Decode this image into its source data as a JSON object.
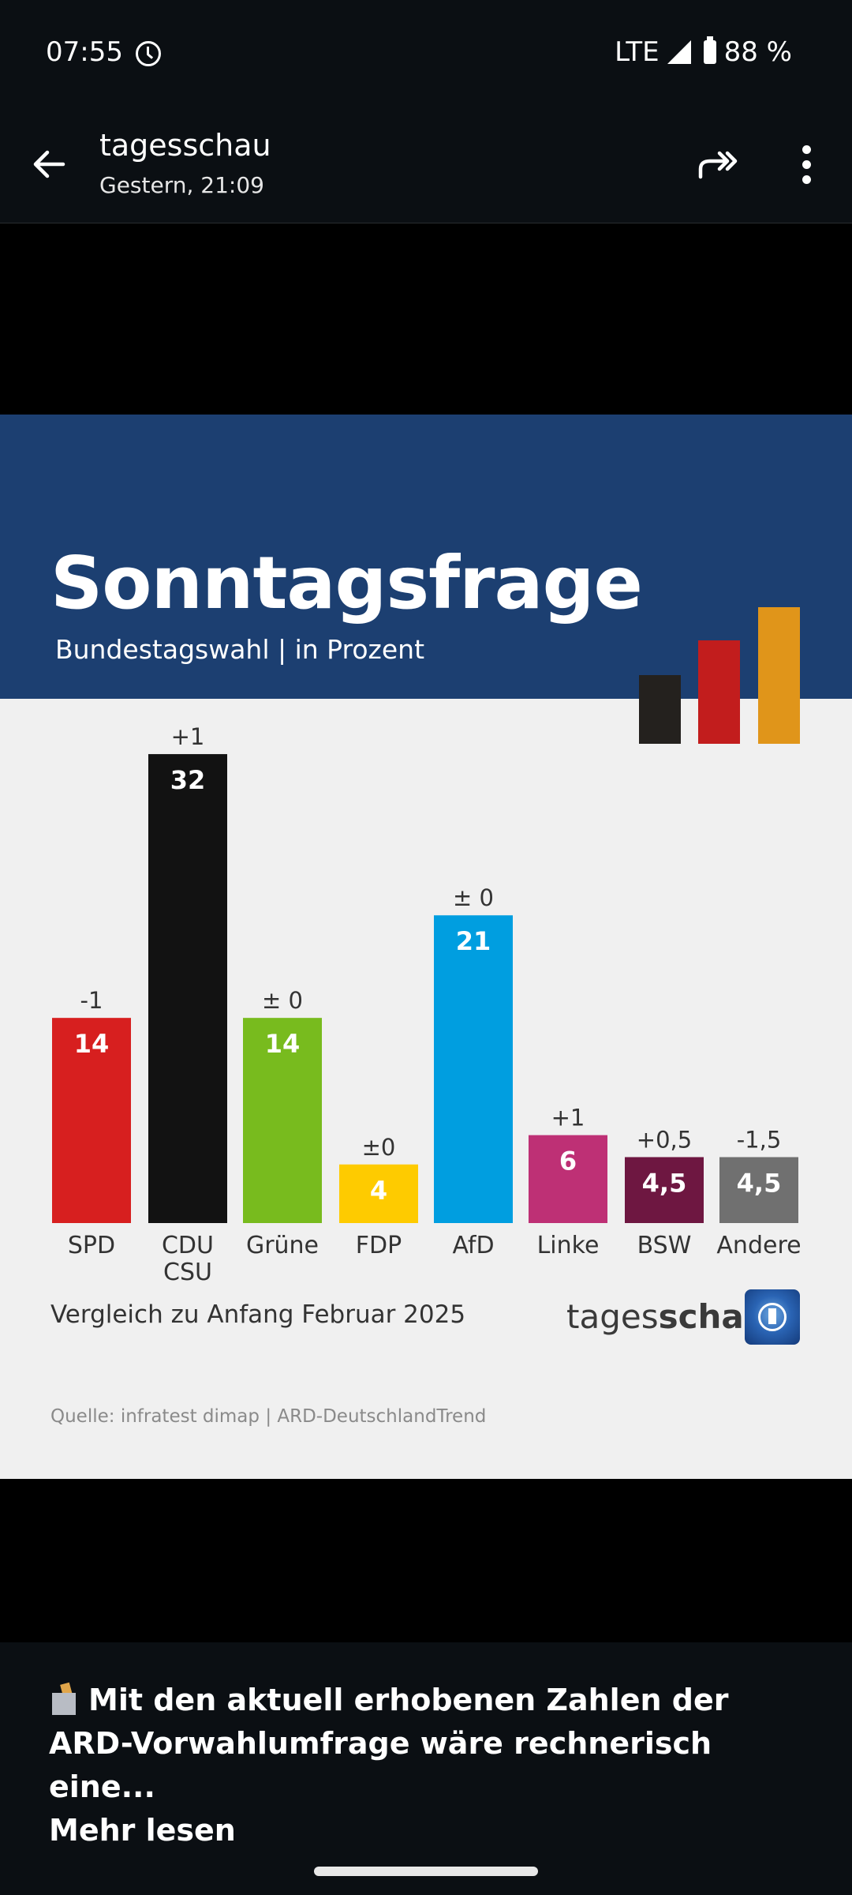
{
  "status_bar": {
    "time": "07:55",
    "network": "LTE",
    "battery": "88 %",
    "icons": [
      "alarm-clock-icon",
      "signal-icon",
      "battery-icon"
    ]
  },
  "app_bar": {
    "title": "tagesschau",
    "subtitle": "Gestern, 21:09",
    "icons": [
      "back-arrow-icon",
      "share-icon",
      "more-vert-icon"
    ]
  },
  "graphic": {
    "headline": "Sonntagsfrage",
    "subline": "Bundestagswahl | in Prozent",
    "footnote": "Vergleich zu Anfang Februar 2025",
    "brand_regular": "tages",
    "brand_bold": "schau",
    "source": "Quelle: infratest dimap | ARD-DeutschlandTrend",
    "colors": {
      "header": "#1c3f71",
      "background": "#f0f0f0"
    },
    "deco_bars": [
      {
        "color": "#24211e"
      },
      {
        "color": "#c21d1d"
      },
      {
        "color": "#e0951a"
      }
    ]
  },
  "chart_data": {
    "type": "bar",
    "title": "Sonntagsfrage",
    "subtitle": "Bundestagswahl | in Prozent",
    "xlabel": "",
    "ylabel": "Prozent",
    "ylim": [
      0,
      32
    ],
    "grid": false,
    "categories": [
      "SPD",
      "CDU\nCSU",
      "Grüne",
      "FDP",
      "AfD",
      "Linke",
      "BSW",
      "Andere"
    ],
    "category_lines": [
      [
        "SPD"
      ],
      [
        "CDU",
        "CSU"
      ],
      [
        "Grüne"
      ],
      [
        "FDP"
      ],
      [
        "AfD"
      ],
      [
        "Linke"
      ],
      [
        "BSW"
      ],
      [
        "Andere"
      ]
    ],
    "values": [
      14,
      32,
      14,
      4,
      21,
      6,
      4.5,
      4.5
    ],
    "value_labels": [
      "14",
      "32",
      "14",
      "4",
      "21",
      "6",
      "4,5",
      "4,5"
    ],
    "change_labels": [
      "-1",
      "+1",
      "± 0",
      "±0",
      "± 0",
      "+1",
      "+0,5",
      "-1,5"
    ],
    "changes": [
      -1,
      1,
      0,
      0,
      0,
      1,
      0.5,
      -1.5
    ],
    "colors": [
      "#d71f1f",
      "#121212",
      "#78bb1e",
      "#fecb00",
      "#009ee0",
      "#be3075",
      "#6e1741",
      "#707070"
    ],
    "comparison": "Vergleich zu Anfang Februar 2025"
  },
  "caption": {
    "text": "Mit den aktuell erhobenen Zahlen der ARD-Vorwahlumfrage wäre rechnerisch eine...",
    "more_label": "Mehr lesen",
    "emoji": "ballot-box-icon"
  }
}
